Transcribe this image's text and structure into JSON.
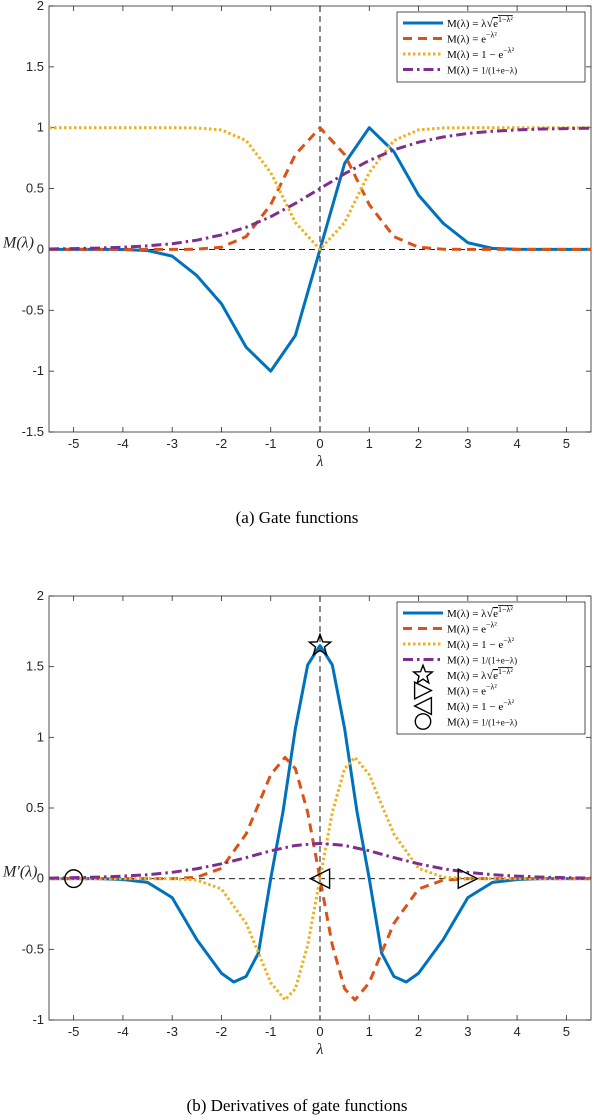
{
  "chart_data": [
    {
      "type": "line",
      "caption": "(a) Gate functions",
      "xlabel": "λ",
      "ylabel": "M(λ)",
      "xlim": [
        -5.5,
        5.5
      ],
      "ylim": [
        -1.5,
        2
      ],
      "xticks": [
        -5,
        -4,
        -3,
        -2,
        -1,
        0,
        1,
        2,
        3,
        4,
        5
      ],
      "xtick_labels": [
        "-5",
        "-4",
        "-3",
        "-2",
        "-1",
        "0",
        "1",
        "2",
        "3",
        "4",
        "5"
      ],
      "yticks": [
        -1.5,
        -1,
        -0.5,
        0,
        0.5,
        1,
        1.5,
        2
      ],
      "ytick_labels": [
        "-1.5",
        "-1",
        "-0.5",
        "0",
        "0.5",
        "1",
        "1.5",
        "2"
      ],
      "grid": false,
      "legend_position": "top-right",
      "series": [
        {
          "name": "M(λ) = λ√e^{1−λ²}",
          "color": "#0072BD",
          "style": "solid",
          "x": [
            -5.5,
            -5,
            -4.5,
            -4,
            -3.5,
            -3,
            -2.5,
            -2,
            -1.5,
            -1,
            -0.5,
            0,
            0.5,
            1,
            1.5,
            2,
            2.5,
            3,
            3.5,
            4,
            4.5,
            5,
            5.5
          ],
          "y": [
            0,
            0,
            0,
            -0.001,
            -0.009,
            -0.055,
            -0.215,
            -0.446,
            -0.803,
            -1,
            -0.707,
            0,
            0.707,
            1,
            0.803,
            0.446,
            0.215,
            0.055,
            0.009,
            0.001,
            0,
            0,
            0
          ]
        },
        {
          "name": "M(λ) = e^{−λ²}",
          "color": "#D95319",
          "style": "dashed",
          "x": [
            -5.5,
            -5,
            -4.5,
            -4,
            -3.5,
            -3,
            -2.5,
            -2,
            -1.5,
            -1,
            -0.5,
            0,
            0.5,
            1,
            1.5,
            2,
            2.5,
            3,
            3.5,
            4,
            4.5,
            5,
            5.5
          ],
          "y": [
            0,
            0,
            0,
            0,
            0,
            0,
            0.002,
            0.018,
            0.105,
            0.368,
            0.779,
            1,
            0.779,
            0.368,
            0.105,
            0.018,
            0.002,
            0,
            0,
            0,
            0,
            0,
            0
          ]
        },
        {
          "name": "M(λ) = 1 − e^{−λ²}",
          "color": "#EDB120",
          "style": "dotted",
          "x": [
            -5.5,
            -5,
            -4.5,
            -4,
            -3.5,
            -3,
            -2.5,
            -2,
            -1.5,
            -1,
            -0.5,
            0,
            0.5,
            1,
            1.5,
            2,
            2.5,
            3,
            3.5,
            4,
            4.5,
            5,
            5.5
          ],
          "y": [
            1,
            1,
            1,
            1,
            1,
            1,
            0.998,
            0.982,
            0.895,
            0.632,
            0.221,
            0,
            0.221,
            0.632,
            0.895,
            0.982,
            0.998,
            1,
            1,
            1,
            1,
            1,
            1
          ]
        },
        {
          "name": "M(λ) = 1/(1+e^{−λ})",
          "color": "#7E2F8E",
          "style": "dashdot",
          "x": [
            -5.5,
            -5,
            -4.5,
            -4,
            -3.5,
            -3,
            -2.5,
            -2,
            -1.5,
            -1,
            -0.5,
            0,
            0.5,
            1,
            1.5,
            2,
            2.5,
            3,
            3.5,
            4,
            4.5,
            5,
            5.5
          ],
          "y": [
            0.004,
            0.007,
            0.011,
            0.018,
            0.029,
            0.047,
            0.076,
            0.119,
            0.182,
            0.269,
            0.378,
            0.5,
            0.622,
            0.731,
            0.818,
            0.881,
            0.924,
            0.953,
            0.971,
            0.982,
            0.989,
            0.993,
            0.996
          ]
        }
      ]
    },
    {
      "type": "line",
      "caption": "(b) Derivatives of gate functions",
      "xlabel": "λ",
      "ylabel": "M′(λ)",
      "xlim": [
        -5.5,
        5.5
      ],
      "ylim": [
        -1,
        2
      ],
      "xticks": [
        -5,
        -4,
        -3,
        -2,
        -1,
        0,
        1,
        2,
        3,
        4,
        5
      ],
      "xtick_labels": [
        "-5",
        "-4",
        "-3",
        "-2",
        "-1",
        "0",
        "1",
        "2",
        "3",
        "4",
        "5"
      ],
      "yticks": [
        -1,
        -0.5,
        0,
        0.5,
        1,
        1.5,
        2
      ],
      "ytick_labels": [
        "-1",
        "-0.5",
        "0",
        "0.5",
        "1",
        "1.5",
        "2"
      ],
      "grid": false,
      "legend_position": "top-right",
      "series": [
        {
          "name": "M(λ) = λ√e^{1−λ²}",
          "color": "#0072BD",
          "style": "solid",
          "x": [
            -5.5,
            -5,
            -4.5,
            -4,
            -3.5,
            -3,
            -2.5,
            -2,
            -1.75,
            -1.5,
            -1.25,
            -1,
            -0.75,
            -0.5,
            -0.25,
            0,
            0.25,
            0.5,
            0.75,
            1,
            1.25,
            1.5,
            1.75,
            2,
            2.5,
            3,
            3.5,
            4,
            4.5,
            5,
            5.5
          ],
          "y": [
            0,
            0,
            0,
            -0.006,
            -0.026,
            -0.134,
            -0.431,
            -0.669,
            -0.731,
            -0.692,
            -0.526,
            0,
            0.476,
            1.061,
            1.512,
            1.649,
            1.512,
            1.061,
            0.476,
            0,
            -0.526,
            -0.692,
            -0.731,
            -0.669,
            -0.431,
            -0.134,
            -0.026,
            -0.006,
            0,
            0,
            0
          ]
        },
        {
          "name": "M(λ) = e^{−λ²}",
          "color": "#D95319",
          "style": "dashed",
          "x": [
            -5.5,
            -5,
            -4.5,
            -4,
            -3.5,
            -3,
            -2.5,
            -2,
            -1.5,
            -1.25,
            -1,
            -0.71,
            -0.5,
            -0.25,
            0,
            0.25,
            0.5,
            0.71,
            1,
            1.25,
            1.5,
            2,
            2.5,
            3,
            3.5,
            4,
            4.5,
            5,
            5.5
          ],
          "y": [
            0,
            0,
            0,
            0,
            0,
            0,
            0.01,
            0.073,
            0.316,
            0.524,
            0.736,
            0.858,
            0.779,
            0.47,
            0,
            -0.47,
            -0.779,
            -0.858,
            -0.736,
            -0.524,
            -0.316,
            -0.073,
            -0.01,
            0,
            0,
            0,
            0,
            0,
            0
          ]
        },
        {
          "name": "M(λ) = 1 − e^{−λ²}",
          "color": "#EDB120",
          "style": "dotted",
          "x": [
            -5.5,
            -5,
            -4.5,
            -4,
            -3.5,
            -3,
            -2.5,
            -2,
            -1.5,
            -1.25,
            -1,
            -0.71,
            -0.5,
            -0.25,
            0,
            0.25,
            0.5,
            0.71,
            1,
            1.25,
            1.5,
            2,
            2.5,
            3,
            3.5,
            4,
            4.5,
            5,
            5.5
          ],
          "y": [
            0,
            0,
            0,
            0,
            0,
            0,
            -0.01,
            -0.073,
            -0.316,
            -0.524,
            -0.736,
            -0.858,
            -0.779,
            -0.47,
            0,
            0.47,
            0.779,
            0.858,
            0.736,
            0.524,
            0.316,
            0.073,
            0.01,
            0,
            0,
            0,
            0,
            0,
            0
          ]
        },
        {
          "name": "M(λ) = 1/(1+e^{−λ})",
          "color": "#7E2F8E",
          "style": "dashdot",
          "x": [
            -5.5,
            -5,
            -4.5,
            -4,
            -3.5,
            -3,
            -2.5,
            -2,
            -1.5,
            -1,
            -0.5,
            0,
            0.5,
            1,
            1.5,
            2,
            2.5,
            3,
            3.5,
            4,
            4.5,
            5,
            5.5
          ],
          "y": [
            0.004,
            0.007,
            0.011,
            0.018,
            0.028,
            0.045,
            0.07,
            0.105,
            0.149,
            0.197,
            0.235,
            0.25,
            0.235,
            0.197,
            0.149,
            0.105,
            0.07,
            0.045,
            0.028,
            0.018,
            0.011,
            0.007,
            0.004
          ]
        }
      ],
      "markers": [
        {
          "name": "M(λ) = λ√e^{1−λ²}",
          "shape": "star",
          "x": 0,
          "y": 1.649
        },
        {
          "name": "M(λ) = e^{−λ²}",
          "shape": "triangle-right",
          "x": 3,
          "y": 0
        },
        {
          "name": "M(λ) = 1 − e^{−λ²}",
          "shape": "triangle-left",
          "x": 0,
          "y": 0
        },
        {
          "name": "M(λ) = 1/(1+e^{−λ})",
          "shape": "circle",
          "x": -5,
          "y": 0
        }
      ]
    }
  ]
}
